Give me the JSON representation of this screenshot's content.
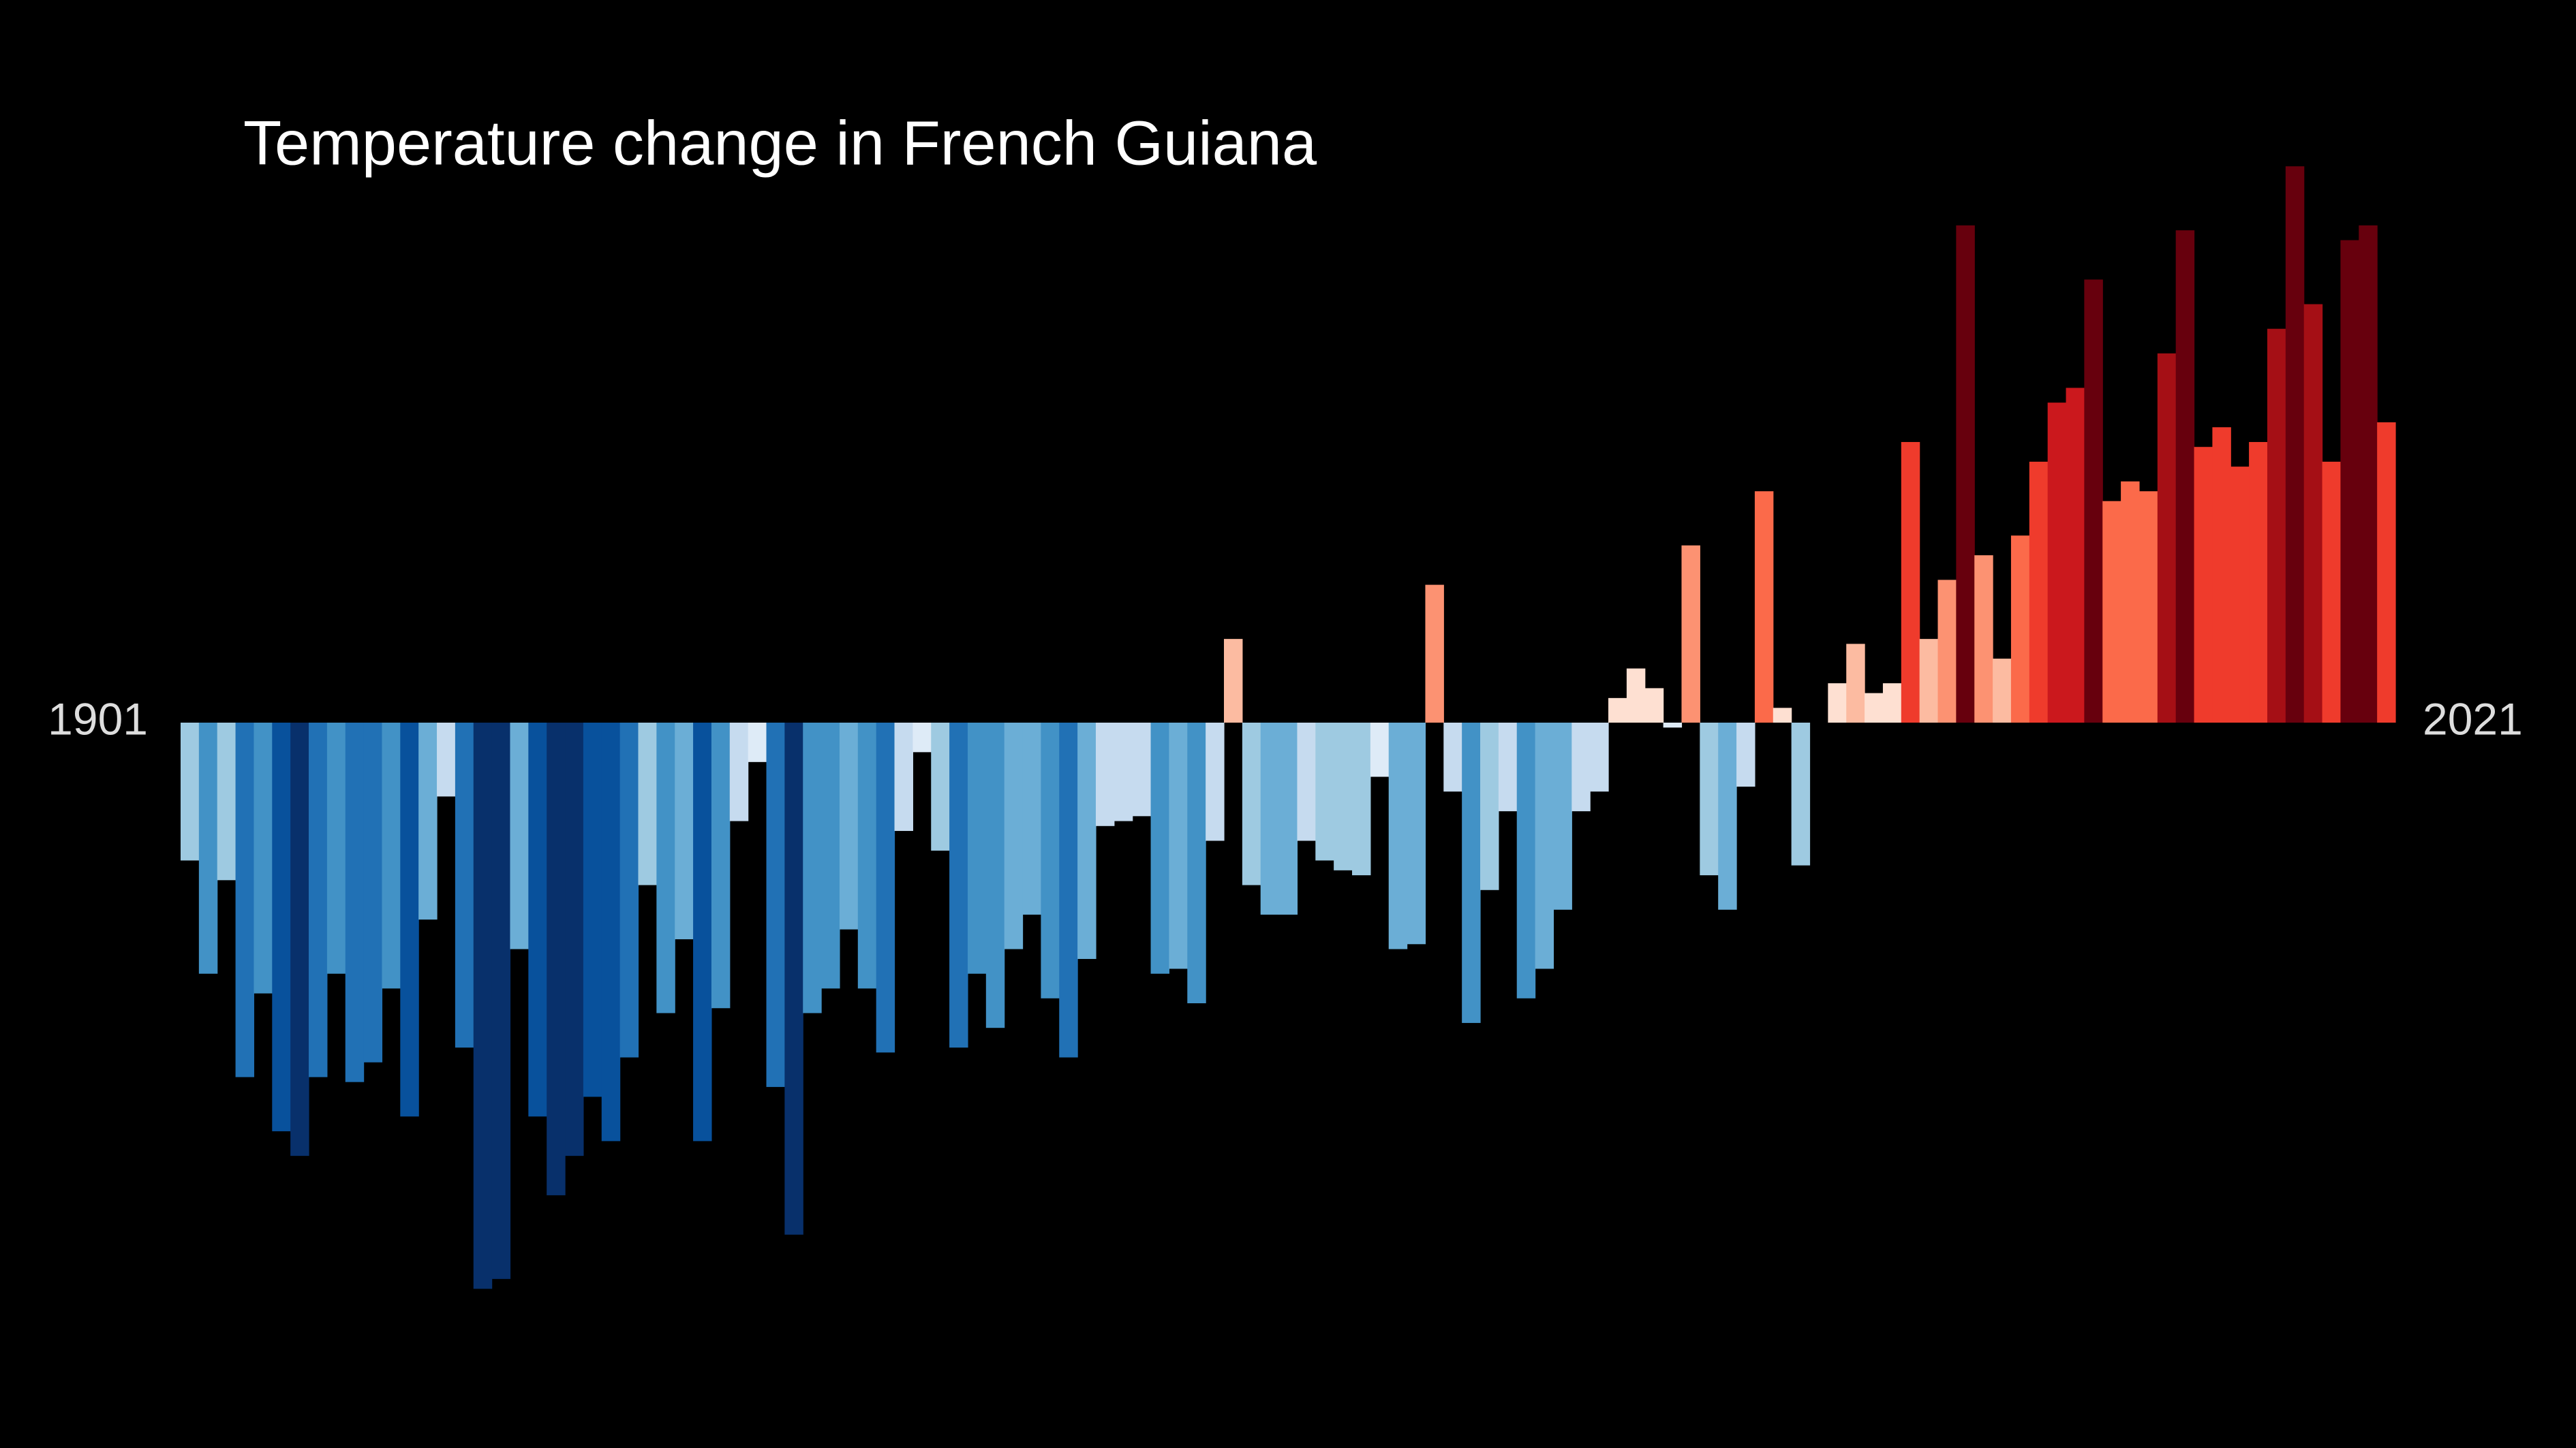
{
  "chart_data": {
    "type": "bar",
    "title": "Temperature change in French Guiana",
    "categories": [
      "1901",
      null,
      null,
      null,
      null,
      null,
      null,
      null,
      null,
      null,
      null,
      null,
      null,
      null,
      null,
      null,
      null,
      null,
      null,
      null,
      null,
      null,
      null,
      null,
      null,
      null,
      null,
      null,
      null,
      null,
      null,
      null,
      null,
      null,
      null,
      null,
      null,
      null,
      null,
      null,
      null,
      null,
      null,
      null,
      null,
      null,
      null,
      null,
      null,
      null,
      null,
      null,
      null,
      null,
      null,
      null,
      null,
      null,
      null,
      null,
      null,
      null,
      null,
      null,
      null,
      null,
      null,
      null,
      null,
      null,
      null,
      null,
      null,
      null,
      null,
      null,
      null,
      null,
      null,
      null,
      null,
      null,
      null,
      null,
      null,
      null,
      null,
      null,
      null,
      null,
      null,
      null,
      null,
      null,
      null,
      null,
      null,
      null,
      null,
      null,
      null,
      null,
      null,
      null,
      null,
      null,
      null,
      null,
      null,
      null,
      null,
      null,
      null,
      null,
      null,
      null,
      null,
      null,
      null,
      null,
      "2021"
    ],
    "values": [
      -0.28,
      -0.51,
      -0.32,
      -0.72,
      -0.55,
      -0.83,
      -0.88,
      -0.72,
      -0.51,
      -0.73,
      -0.69,
      -0.54,
      -0.8,
      -0.4,
      -0.15,
      -0.66,
      -1.15,
      -1.13,
      -0.46,
      -0.8,
      -0.96,
      -0.88,
      -0.76,
      -0.85,
      -0.68,
      -0.33,
      -0.59,
      -0.44,
      -0.85,
      -0.58,
      -0.2,
      -0.08,
      -0.74,
      -1.04,
      -0.59,
      -0.54,
      -0.42,
      -0.54,
      -0.67,
      -0.22,
      -0.06,
      -0.26,
      -0.66,
      -0.51,
      -0.62,
      -0.46,
      -0.39,
      -0.56,
      -0.68,
      -0.48,
      -0.21,
      -0.2,
      -0.19,
      -0.51,
      -0.5,
      -0.57,
      -0.24,
      0.17,
      -0.33,
      -0.39,
      -0.39,
      -0.24,
      -0.28,
      -0.3,
      -0.31,
      -0.11,
      -0.46,
      -0.45,
      0.28,
      -0.14,
      -0.61,
      -0.34,
      -0.18,
      -0.56,
      -0.5,
      -0.38,
      -0.18,
      -0.14,
      0.05,
      0.11,
      0.07,
      -0.01,
      0.36,
      -0.31,
      -0.38,
      -0.13,
      0.47,
      0.03,
      -0.29,
      0,
      0.08,
      0.16,
      0.06,
      0.08,
      0.57,
      0.17,
      0.29,
      1.01,
      0.34,
      0.13,
      0.38,
      0.53,
      0.65,
      0.68,
      0.9,
      0.45,
      0.49,
      0.47,
      0.75,
      1,
      0.56,
      0.6,
      0.52,
      0.57,
      0.8,
      1.13,
      0.85,
      0.53,
      0.98,
      1.01,
      0.61
    ],
    "ylim": [
      -1.4,
      1.4
    ],
    "colormap": [
      "#08306b",
      "#08519c",
      "#2171b5",
      "#4292c6",
      "#6baed6",
      "#9ecae1",
      "#c6dbef",
      "#deebf7",
      "#fee0d2",
      "#fcbba1",
      "#fc9272",
      "#fb6a4a",
      "#ef3b2c",
      "#cb181d",
      "#a50f15",
      "#67000d"
    ],
    "clim": [
      -1,
      1
    ],
    "background": "#000000"
  }
}
